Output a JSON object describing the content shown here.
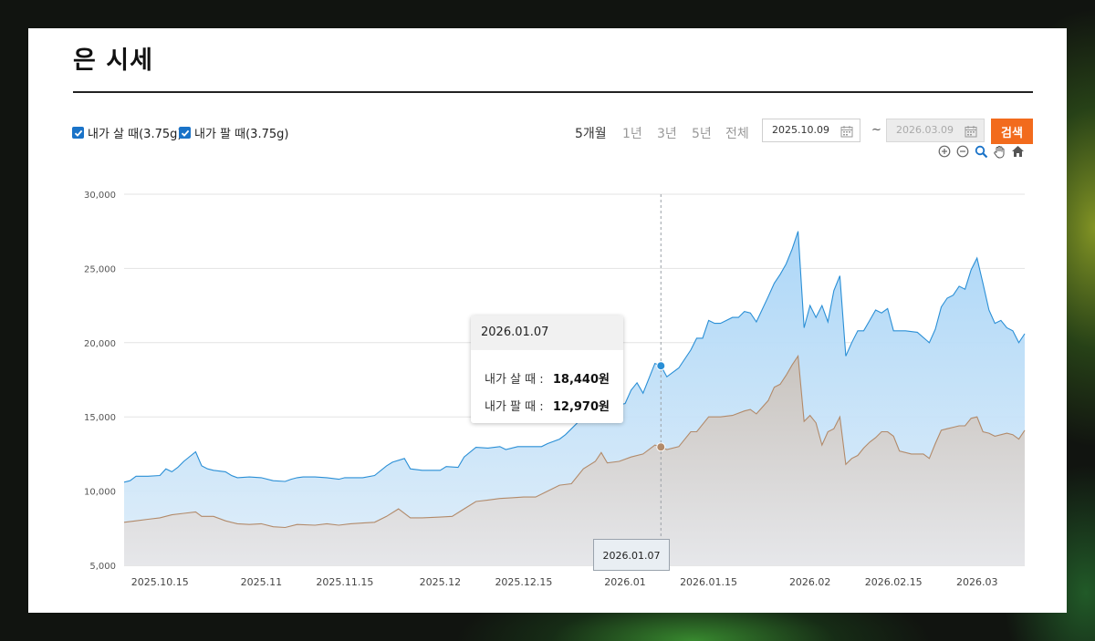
{
  "page": {
    "title": "은 시세"
  },
  "filters": {
    "buy_label": "내가 살 때(3.75g)",
    "sell_label": "내가 팔 때(3.75g)",
    "periods": [
      "5개월",
      "1년",
      "3년",
      "5년",
      "전체"
    ],
    "active_period": "5개월",
    "start_date": "2025.10.09",
    "range_separator": "~",
    "end_date": "2026.03.09",
    "search_label": "검색"
  },
  "tooltip": {
    "date": "2026.01.07",
    "buy_label": "내가 살 때 :",
    "buy_value": "18,440원",
    "sell_label": "내가 팔 때 :",
    "sell_value": "12,970원"
  },
  "crosshair_label": "2026.01.07",
  "toolbar_icons": [
    "zoom-in-icon",
    "zoom-out-icon",
    "zoom-select-icon",
    "pan-hand-icon",
    "home-icon"
  ],
  "colors": {
    "buy_line": "#2a8fd6",
    "buy_fill": "#a9d5f7",
    "sell_line": "#b28a6a",
    "sell_fill": "#d5d5d5",
    "search_button": "#f26b1d",
    "checkbox": "#1a73c8"
  },
  "chart_data": {
    "type": "area",
    "x_start": "2025-10-09",
    "x_end": "2026-03-09",
    "ylim": [
      5000,
      30000
    ],
    "y_ticks": [
      "5,000",
      "10,000",
      "15,000",
      "20,000",
      "25,000",
      "30,000"
    ],
    "x_ticks": [
      "2025.10.15",
      "2025.11",
      "2025.11.15",
      "2025.12",
      "2025.12.15",
      "2026.01",
      "2026.01.15",
      "2026.02",
      "2026.02.15",
      "2026.03"
    ],
    "x_tick_dates": [
      "2025-10-15",
      "2025-11-01",
      "2025-11-15",
      "2025-12-01",
      "2025-12-15",
      "2026-01-01",
      "2026-01-15",
      "2026-02-01",
      "2026-02-15",
      "2026-03-01"
    ],
    "grid": true,
    "crosshair_date": "2026-01-07",
    "series": [
      {
        "name": "내가 살 때(3.75g)",
        "points": [
          [
            "2025-10-09",
            10600
          ],
          [
            "2025-10-10",
            10700
          ],
          [
            "2025-10-11",
            11000
          ],
          [
            "2025-10-13",
            11000
          ],
          [
            "2025-10-15",
            11050
          ],
          [
            "2025-10-16",
            11500
          ],
          [
            "2025-10-17",
            11300
          ],
          [
            "2025-10-18",
            11600
          ],
          [
            "2025-10-19",
            12000
          ],
          [
            "2025-10-21",
            12650
          ],
          [
            "2025-10-22",
            11700
          ],
          [
            "2025-10-23",
            11500
          ],
          [
            "2025-10-24",
            11400
          ],
          [
            "2025-10-26",
            11300
          ],
          [
            "2025-10-27",
            11050
          ],
          [
            "2025-10-28",
            10900
          ],
          [
            "2025-10-30",
            10950
          ],
          [
            "2025-11-01",
            10900
          ],
          [
            "2025-11-03",
            10700
          ],
          [
            "2025-11-05",
            10650
          ],
          [
            "2025-11-06",
            10800
          ],
          [
            "2025-11-07",
            10900
          ],
          [
            "2025-11-08",
            10950
          ],
          [
            "2025-11-10",
            10950
          ],
          [
            "2025-11-12",
            10900
          ],
          [
            "2025-11-14",
            10800
          ],
          [
            "2025-11-15",
            10900
          ],
          [
            "2025-11-18",
            10900
          ],
          [
            "2025-11-20",
            11050
          ],
          [
            "2025-11-22",
            11700
          ],
          [
            "2025-11-23",
            11950
          ],
          [
            "2025-11-25",
            12200
          ],
          [
            "2025-11-26",
            11500
          ],
          [
            "2025-11-28",
            11400
          ],
          [
            "2025-12-01",
            11400
          ],
          [
            "2025-12-02",
            11650
          ],
          [
            "2025-12-04",
            11600
          ],
          [
            "2025-12-05",
            12300
          ],
          [
            "2025-12-07",
            12950
          ],
          [
            "2025-12-09",
            12900
          ],
          [
            "2025-12-11",
            13000
          ],
          [
            "2025-12-12",
            12800
          ],
          [
            "2025-12-14",
            13000
          ],
          [
            "2025-12-16",
            13000
          ],
          [
            "2025-12-18",
            13000
          ],
          [
            "2025-12-19",
            13200
          ],
          [
            "2025-12-21",
            13500
          ],
          [
            "2025-12-22",
            13800
          ],
          [
            "2025-12-24",
            14600
          ],
          [
            "2025-12-26",
            16400
          ],
          [
            "2025-12-27",
            17000
          ],
          [
            "2025-12-28",
            16800
          ],
          [
            "2025-12-29",
            15800
          ],
          [
            "2025-12-30",
            15800
          ],
          [
            "2025-12-31",
            15800
          ],
          [
            "2026-01-01",
            15900
          ],
          [
            "2026-01-02",
            16800
          ],
          [
            "2026-01-03",
            17300
          ],
          [
            "2026-01-04",
            16600
          ],
          [
            "2026-01-05",
            17600
          ],
          [
            "2026-01-06",
            18600
          ],
          [
            "2026-01-07",
            18440
          ],
          [
            "2026-01-08",
            17700
          ],
          [
            "2026-01-10",
            18300
          ],
          [
            "2026-01-12",
            19500
          ],
          [
            "2026-01-13",
            20300
          ],
          [
            "2026-01-14",
            20300
          ],
          [
            "2026-01-15",
            21500
          ],
          [
            "2026-01-16",
            21300
          ],
          [
            "2026-01-17",
            21300
          ],
          [
            "2026-01-19",
            21700
          ],
          [
            "2026-01-20",
            21700
          ],
          [
            "2026-01-21",
            22100
          ],
          [
            "2026-01-22",
            22000
          ],
          [
            "2026-01-23",
            21400
          ],
          [
            "2026-01-25",
            23100
          ],
          [
            "2026-01-26",
            24000
          ],
          [
            "2026-01-27",
            24600
          ],
          [
            "2026-01-28",
            25300
          ],
          [
            "2026-01-29",
            26300
          ],
          [
            "2026-01-30",
            27500
          ],
          [
            "2026-01-31",
            21000
          ],
          [
            "2026-02-01",
            22500
          ],
          [
            "2026-02-02",
            21700
          ],
          [
            "2026-02-03",
            22500
          ],
          [
            "2026-02-04",
            21400
          ],
          [
            "2026-02-05",
            23500
          ],
          [
            "2026-02-06",
            24500
          ],
          [
            "2026-02-07",
            19100
          ],
          [
            "2026-02-08",
            20000
          ],
          [
            "2026-02-09",
            20800
          ],
          [
            "2026-02-10",
            20800
          ],
          [
            "2026-02-11",
            21500
          ],
          [
            "2026-02-12",
            22200
          ],
          [
            "2026-02-13",
            22000
          ],
          [
            "2026-02-14",
            22300
          ],
          [
            "2026-02-15",
            20800
          ],
          [
            "2026-02-17",
            20800
          ],
          [
            "2026-02-19",
            20700
          ],
          [
            "2026-02-21",
            20000
          ],
          [
            "2026-02-22",
            20900
          ],
          [
            "2026-02-23",
            22400
          ],
          [
            "2026-02-24",
            23000
          ],
          [
            "2026-02-25",
            23200
          ],
          [
            "2026-02-26",
            23800
          ],
          [
            "2026-02-27",
            23600
          ],
          [
            "2026-02-28",
            24900
          ],
          [
            "2026-03-01",
            25700
          ],
          [
            "2026-03-02",
            24000
          ],
          [
            "2026-03-03",
            22200
          ],
          [
            "2026-03-04",
            21300
          ],
          [
            "2026-03-05",
            21500
          ],
          [
            "2026-03-06",
            21000
          ],
          [
            "2026-03-07",
            20800
          ],
          [
            "2026-03-08",
            20000
          ],
          [
            "2026-03-09",
            20600
          ]
        ]
      },
      {
        "name": "내가 팔 때(3.75g)",
        "points": [
          [
            "2025-10-09",
            7900
          ],
          [
            "2025-10-11",
            8000
          ],
          [
            "2025-10-13",
            8100
          ],
          [
            "2025-10-15",
            8200
          ],
          [
            "2025-10-17",
            8400
          ],
          [
            "2025-10-19",
            8500
          ],
          [
            "2025-10-21",
            8600
          ],
          [
            "2025-10-22",
            8300
          ],
          [
            "2025-10-24",
            8300
          ],
          [
            "2025-10-26",
            8000
          ],
          [
            "2025-10-28",
            7800
          ],
          [
            "2025-10-30",
            7750
          ],
          [
            "2025-11-01",
            7800
          ],
          [
            "2025-11-03",
            7600
          ],
          [
            "2025-11-05",
            7550
          ],
          [
            "2025-11-07",
            7750
          ],
          [
            "2025-11-10",
            7700
          ],
          [
            "2025-11-12",
            7800
          ],
          [
            "2025-11-14",
            7700
          ],
          [
            "2025-11-16",
            7800
          ],
          [
            "2025-11-18",
            7850
          ],
          [
            "2025-11-20",
            7900
          ],
          [
            "2025-11-22",
            8300
          ],
          [
            "2025-11-24",
            8800
          ],
          [
            "2025-11-26",
            8200
          ],
          [
            "2025-11-28",
            8200
          ],
          [
            "2025-12-01",
            8250
          ],
          [
            "2025-12-03",
            8300
          ],
          [
            "2025-12-05",
            8800
          ],
          [
            "2025-12-07",
            9300
          ],
          [
            "2025-12-09",
            9400
          ],
          [
            "2025-12-11",
            9500
          ],
          [
            "2025-12-13",
            9550
          ],
          [
            "2025-12-15",
            9600
          ],
          [
            "2025-12-17",
            9600
          ],
          [
            "2025-12-19",
            10000
          ],
          [
            "2025-12-21",
            10400
          ],
          [
            "2025-12-23",
            10500
          ],
          [
            "2025-12-25",
            11500
          ],
          [
            "2025-12-27",
            12000
          ],
          [
            "2025-12-28",
            12600
          ],
          [
            "2025-12-29",
            11900
          ],
          [
            "2025-12-31",
            12000
          ],
          [
            "2026-01-02",
            12300
          ],
          [
            "2026-01-04",
            12500
          ],
          [
            "2026-01-06",
            13100
          ],
          [
            "2026-01-07",
            12970
          ],
          [
            "2026-01-08",
            12800
          ],
          [
            "2026-01-10",
            13000
          ],
          [
            "2026-01-12",
            14000
          ],
          [
            "2026-01-13",
            14000
          ],
          [
            "2026-01-15",
            15000
          ],
          [
            "2026-01-17",
            15000
          ],
          [
            "2026-01-19",
            15100
          ],
          [
            "2026-01-21",
            15400
          ],
          [
            "2026-01-22",
            15500
          ],
          [
            "2026-01-23",
            15200
          ],
          [
            "2026-01-25",
            16100
          ],
          [
            "2026-01-26",
            17000
          ],
          [
            "2026-01-27",
            17200
          ],
          [
            "2026-01-28",
            17800
          ],
          [
            "2026-01-29",
            18500
          ],
          [
            "2026-01-30",
            19100
          ],
          [
            "2026-01-31",
            14700
          ],
          [
            "2026-02-01",
            15100
          ],
          [
            "2026-02-02",
            14600
          ],
          [
            "2026-02-03",
            13100
          ],
          [
            "2026-02-04",
            14000
          ],
          [
            "2026-02-05",
            14200
          ],
          [
            "2026-02-06",
            15000
          ],
          [
            "2026-02-07",
            11800
          ],
          [
            "2026-02-08",
            12200
          ],
          [
            "2026-02-09",
            12400
          ],
          [
            "2026-02-10",
            12900
          ],
          [
            "2026-02-11",
            13300
          ],
          [
            "2026-02-12",
            13600
          ],
          [
            "2026-02-13",
            14000
          ],
          [
            "2026-02-14",
            14000
          ],
          [
            "2026-02-15",
            13700
          ],
          [
            "2026-02-16",
            12700
          ],
          [
            "2026-02-18",
            12500
          ],
          [
            "2026-02-20",
            12500
          ],
          [
            "2026-02-21",
            12200
          ],
          [
            "2026-02-22",
            13200
          ],
          [
            "2026-02-23",
            14100
          ],
          [
            "2026-02-24",
            14200
          ],
          [
            "2026-02-25",
            14300
          ],
          [
            "2026-02-26",
            14400
          ],
          [
            "2026-02-27",
            14400
          ],
          [
            "2026-02-28",
            14900
          ],
          [
            "2026-03-01",
            15000
          ],
          [
            "2026-03-02",
            14000
          ],
          [
            "2026-03-03",
            13900
          ],
          [
            "2026-03-04",
            13700
          ],
          [
            "2026-03-06",
            13900
          ],
          [
            "2026-03-07",
            13800
          ],
          [
            "2026-03-08",
            13500
          ],
          [
            "2026-03-09",
            14100
          ]
        ]
      }
    ]
  }
}
